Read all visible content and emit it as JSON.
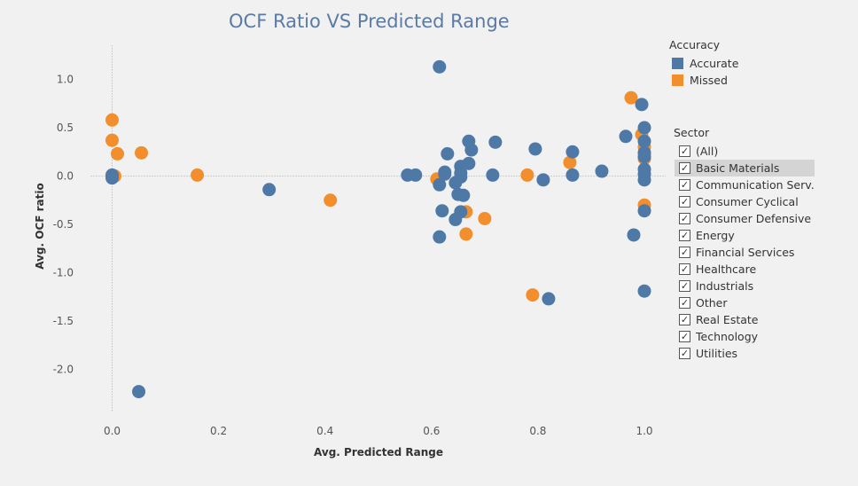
{
  "title": "OCF Ratio VS Predicted Range",
  "legend_accuracy": {
    "title": "Accuracy",
    "items": [
      {
        "label": "Accurate",
        "color": "#4e79a7"
      },
      {
        "label": "Missed",
        "color": "#f28e2b"
      }
    ]
  },
  "legend_sector": {
    "title": "Sector",
    "checkmark": "✓",
    "items": [
      {
        "label": "(All)",
        "checked": true
      },
      {
        "label": "Basic Materials",
        "checked": true,
        "highlighted": true
      },
      {
        "label": "Communication Serv...",
        "checked": true
      },
      {
        "label": "Consumer Cyclical",
        "checked": true
      },
      {
        "label": "Consumer Defensive",
        "checked": true
      },
      {
        "label": "Energy",
        "checked": true
      },
      {
        "label": "Financial Services",
        "checked": true
      },
      {
        "label": "Healthcare",
        "checked": true
      },
      {
        "label": "Industrials",
        "checked": true
      },
      {
        "label": "Other",
        "checked": true
      },
      {
        "label": "Real Estate",
        "checked": true
      },
      {
        "label": "Technology",
        "checked": true
      },
      {
        "label": "Utilities",
        "checked": true
      }
    ]
  },
  "chart_data": {
    "type": "scatter",
    "xlabel": "Avg. Predicted Range",
    "ylabel": "Avg. OCF ratio",
    "xlim": [
      -0.04,
      1.04
    ],
    "ylim": [
      -2.45,
      1.35
    ],
    "xticks": [
      0.0,
      0.2,
      0.4,
      0.6,
      0.8,
      1.0
    ],
    "yticks": [
      1.0,
      0.5,
      0.0,
      -0.5,
      -1.0,
      -1.5,
      -2.0
    ],
    "xtick_labels": [
      "0.0",
      "0.2",
      "0.4",
      "0.6",
      "0.8",
      "1.0"
    ],
    "ytick_labels": [
      "1.0",
      "0.5",
      "0.0",
      "-0.5",
      "-1.0",
      "-1.5",
      "-2.0"
    ],
    "zero_lines": true,
    "grid": false,
    "series": [
      {
        "name": "Missed",
        "color": "#f28e2b",
        "points": [
          [
            0.0,
            0.58
          ],
          [
            0.0,
            0.37
          ],
          [
            0.01,
            0.23
          ],
          [
            0.005,
            0.0
          ],
          [
            0.055,
            0.24
          ],
          [
            0.16,
            0.01
          ],
          [
            0.41,
            -0.25
          ],
          [
            0.61,
            -0.03
          ],
          [
            0.665,
            -0.37
          ],
          [
            0.665,
            -0.6
          ],
          [
            0.7,
            -0.44
          ],
          [
            0.78,
            0.01
          ],
          [
            0.79,
            -1.23
          ],
          [
            0.86,
            0.14
          ],
          [
            0.975,
            0.81
          ],
          [
            0.995,
            0.43
          ],
          [
            1.0,
            0.3
          ],
          [
            1.0,
            0.18
          ],
          [
            1.0,
            -0.3
          ]
        ]
      },
      {
        "name": "Accurate",
        "color": "#4e79a7",
        "points": [
          [
            0.0,
            0.01
          ],
          [
            0.0,
            -0.02
          ],
          [
            0.05,
            -2.23
          ],
          [
            0.295,
            -0.14
          ],
          [
            0.555,
            0.01
          ],
          [
            0.57,
            0.01
          ],
          [
            0.615,
            1.13
          ],
          [
            0.615,
            -0.09
          ],
          [
            0.62,
            -0.36
          ],
          [
            0.615,
            -0.63
          ],
          [
            0.625,
            0.02
          ],
          [
            0.625,
            0.04
          ],
          [
            0.63,
            0.23
          ],
          [
            0.645,
            -0.45
          ],
          [
            0.645,
            -0.07
          ],
          [
            0.65,
            -0.19
          ],
          [
            0.655,
            -0.37
          ],
          [
            0.655,
            0.1
          ],
          [
            0.655,
            0.03
          ],
          [
            0.66,
            -0.2
          ],
          [
            0.655,
            -0.01
          ],
          [
            0.67,
            0.36
          ],
          [
            0.67,
            0.13
          ],
          [
            0.675,
            0.27
          ],
          [
            0.715,
            0.01
          ],
          [
            0.72,
            0.35
          ],
          [
            0.795,
            0.28
          ],
          [
            0.81,
            -0.04
          ],
          [
            0.82,
            -1.27
          ],
          [
            0.865,
            0.25
          ],
          [
            0.865,
            0.01
          ],
          [
            0.92,
            0.05
          ],
          [
            0.965,
            0.41
          ],
          [
            0.98,
            -0.61
          ],
          [
            0.995,
            0.74
          ],
          [
            1.0,
            0.5
          ],
          [
            1.0,
            0.36
          ],
          [
            1.0,
            0.24
          ],
          [
            1.0,
            0.2
          ],
          [
            1.0,
            0.07
          ],
          [
            1.0,
            0.02
          ],
          [
            1.0,
            -0.04
          ],
          [
            1.0,
            -0.36
          ],
          [
            1.0,
            -1.19
          ]
        ]
      }
    ]
  }
}
